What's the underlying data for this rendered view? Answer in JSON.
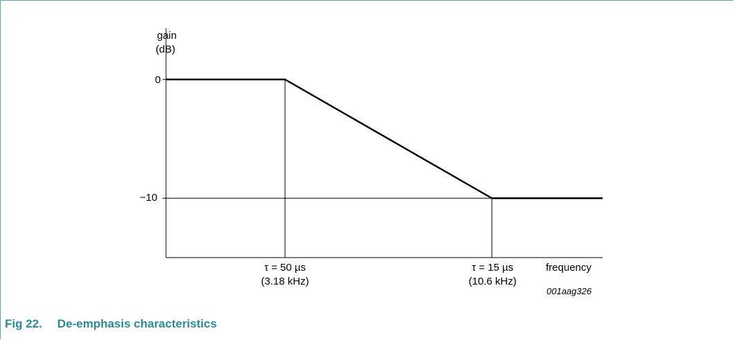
{
  "figure": {
    "caption_label": "Fig 22.",
    "caption_title": "De-emphasis characteristics",
    "code": "001aag326"
  },
  "colors": {
    "caption": "#2a8a99",
    "frame": "#5ba3ad",
    "line": "#000000"
  },
  "chart_data": {
    "type": "line",
    "ylabel_line1": "gain",
    "ylabel_line2": "(dB)",
    "xlabel": "frequency",
    "y_ticks": [
      {
        "value": 0,
        "label": "0"
      },
      {
        "value": -10,
        "label": "−10"
      }
    ],
    "ylim": [
      -15,
      4.3
    ],
    "x_markers": [
      {
        "label_line1": "τ = 50 µs",
        "label_line2": "(3.18 kHz)",
        "value_khz": 3.18
      },
      {
        "label_line1": "τ = 15 µs",
        "label_line2": "(10.6 kHz)",
        "value_khz": 10.6
      }
    ],
    "series": [
      {
        "points": [
          {
            "x": "start",
            "y": 0
          },
          {
            "x": 3.18,
            "y": 0
          },
          {
            "x": 10.6,
            "y": -10
          },
          {
            "x": "end",
            "y": -10
          }
        ]
      }
    ]
  }
}
